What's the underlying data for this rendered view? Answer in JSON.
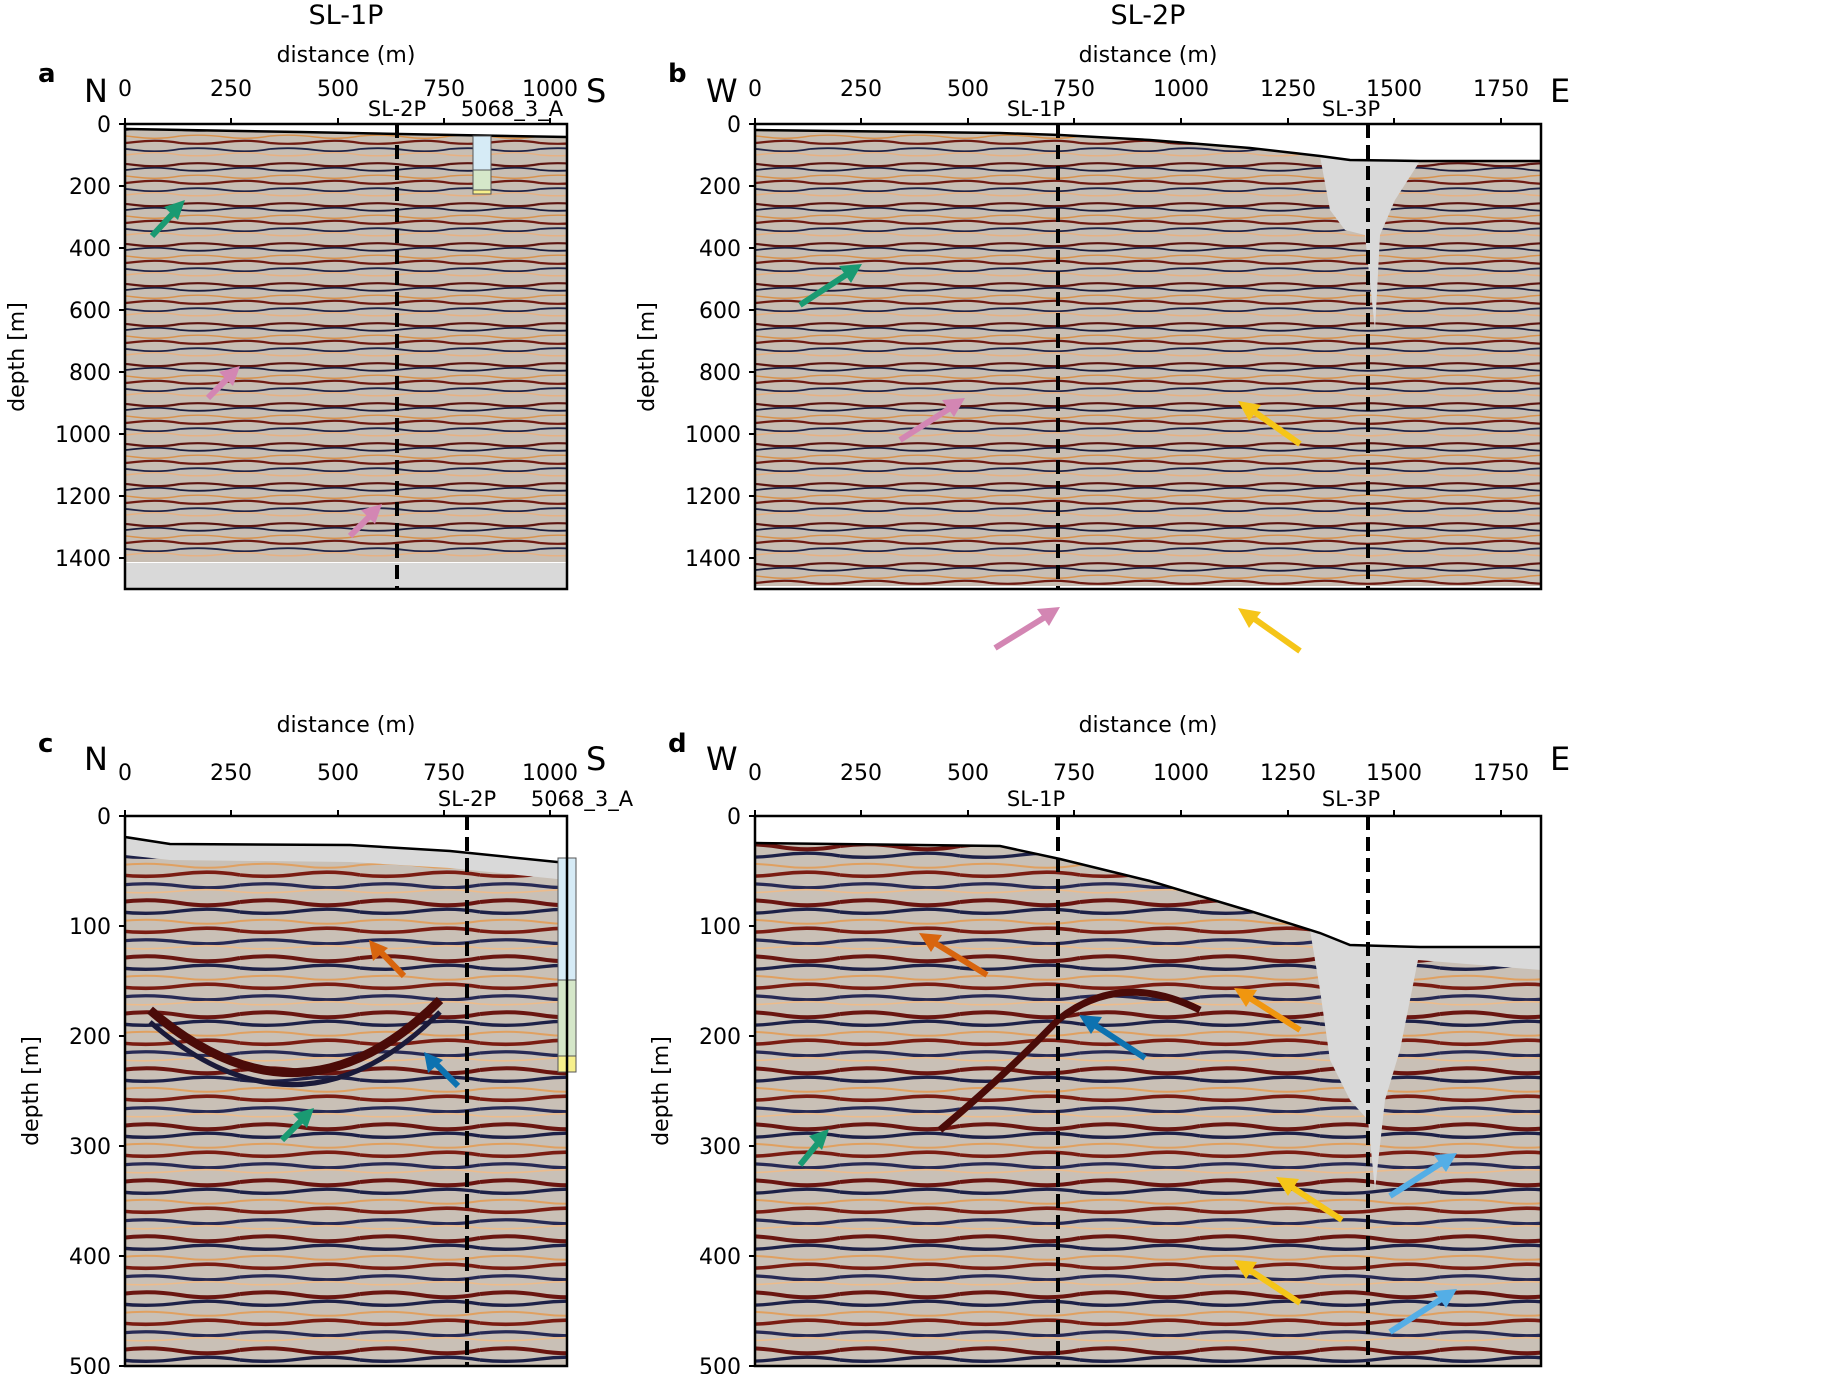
{
  "titles": {
    "left": "SL-1P",
    "right": "SL-2P"
  },
  "xlabel": "distance (m)",
  "ylabel": "depth [m]",
  "colors": {
    "seismic_bg": "#c7bdb2",
    "water": "#d9d9d9",
    "green": "#1a9a72",
    "pink": "#d386b3",
    "yellow": "#f5c518",
    "orange": "#d8650e",
    "blue": "#0d72b0",
    "lightblue": "#54aee6"
  },
  "panels": [
    {
      "id": "a",
      "label": "a",
      "left_dir": "N",
      "right_dir": "S",
      "x_ticks": [
        "0",
        "250",
        "500",
        "750",
        "1000"
      ],
      "y_ticks": [
        "0",
        "200",
        "400",
        "600",
        "800",
        "1000",
        "1200",
        "1400"
      ],
      "markers": [
        "SL-2P"
      ],
      "well": "5068_3_A"
    },
    {
      "id": "b",
      "label": "b",
      "left_dir": "W",
      "right_dir": "E",
      "x_ticks": [
        "0",
        "250",
        "500",
        "750",
        "1000",
        "1250",
        "1500",
        "1750"
      ],
      "y_ticks": [
        "0",
        "200",
        "400",
        "600",
        "800",
        "1000",
        "1200",
        "1400"
      ],
      "markers": [
        "SL-1P",
        "SL-3P"
      ]
    },
    {
      "id": "c",
      "label": "c",
      "left_dir": "N",
      "right_dir": "S",
      "x_ticks": [
        "0",
        "250",
        "500",
        "750",
        "1000"
      ],
      "y_ticks": [
        "0",
        "100",
        "200",
        "300",
        "400",
        "500"
      ],
      "markers": [
        "SL-2P"
      ],
      "well": "5068_3_A"
    },
    {
      "id": "d",
      "label": "d",
      "left_dir": "W",
      "right_dir": "E",
      "x_ticks": [
        "0",
        "250",
        "500",
        "750",
        "1000",
        "1250",
        "1500",
        "1750"
      ],
      "y_ticks": [
        "0",
        "100",
        "200",
        "300",
        "400",
        "500"
      ],
      "markers": [
        "SL-1P",
        "SL-3P"
      ]
    }
  ]
}
